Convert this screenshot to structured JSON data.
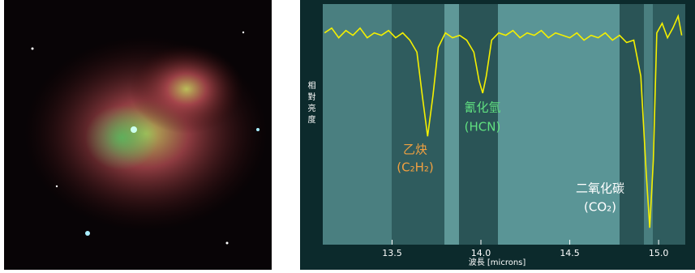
{
  "chart_data": {
    "type": "line",
    "xlabel": "波長 [microns]",
    "ylabel": "相對亮度",
    "xlim": [
      13.11,
      15.15
    ],
    "ylim": [
      0,
      1
    ],
    "xticks": [
      13.5,
      {
        "value": 14,
        "label": "14.0"
      },
      14.5,
      {
        "value": 15,
        "label": "15.0"
      }
    ],
    "x": [
      13.12,
      13.16,
      13.2,
      13.24,
      13.28,
      13.32,
      13.36,
      13.4,
      13.44,
      13.48,
      13.52,
      13.56,
      13.6,
      13.64,
      13.67,
      13.7,
      13.73,
      13.76,
      13.8,
      13.84,
      13.88,
      13.92,
      13.96,
      13.99,
      14.01,
      14.03,
      14.06,
      14.1,
      14.14,
      14.18,
      14.22,
      14.26,
      14.3,
      14.34,
      14.38,
      14.42,
      14.46,
      14.5,
      14.54,
      14.58,
      14.62,
      14.66,
      14.7,
      14.74,
      14.78,
      14.82,
      14.86,
      14.9,
      14.93,
      14.95,
      14.97,
      14.99,
      15.02,
      15.05,
      15.08,
      15.11,
      15.13
    ],
    "series": [
      {
        "color": "#f4f000",
        "values": [
          0.88,
          0.9,
          0.86,
          0.89,
          0.87,
          0.9,
          0.86,
          0.88,
          0.87,
          0.89,
          0.86,
          0.88,
          0.85,
          0.8,
          0.62,
          0.45,
          0.62,
          0.82,
          0.88,
          0.86,
          0.87,
          0.85,
          0.8,
          0.68,
          0.63,
          0.7,
          0.85,
          0.88,
          0.87,
          0.89,
          0.86,
          0.88,
          0.87,
          0.89,
          0.86,
          0.88,
          0.87,
          0.86,
          0.88,
          0.85,
          0.87,
          0.86,
          0.88,
          0.85,
          0.87,
          0.84,
          0.85,
          0.7,
          0.3,
          0.07,
          0.35,
          0.88,
          0.92,
          0.86,
          0.9,
          0.95,
          0.87
        ]
      }
    ],
    "annotations": [
      {
        "name": "乙炔",
        "formula": "(C₂H₂)",
        "color": "#f0a040"
      },
      {
        "name": "氰化氫",
        "formula": "(HCN)",
        "color": "#60e080"
      },
      {
        "name": "二氧化碳",
        "formula": "(CO₂)",
        "color": "#ffffff"
      }
    ]
  }
}
